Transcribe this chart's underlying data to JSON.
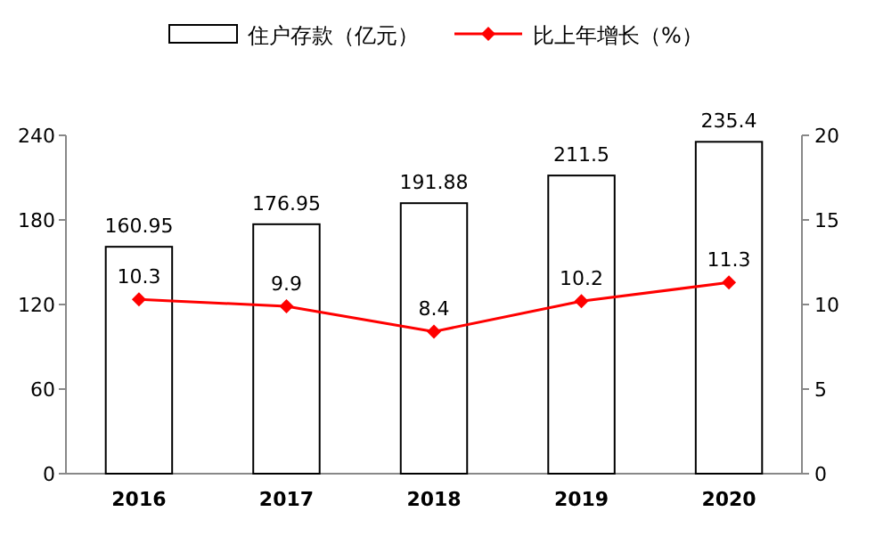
{
  "chart_data": {
    "type": "bar",
    "categories": [
      "2016",
      "2017",
      "2018",
      "2019",
      "2020"
    ],
    "series": [
      {
        "name": "住户存款（亿元）",
        "color": "#ffffff",
        "values": [
          160.95,
          176.95,
          191.88,
          211.5,
          235.4
        ]
      },
      {
        "name": "比上年增长（%）",
        "type": "line",
        "axis": "y2",
        "color": "#ff0000",
        "marker": "diamond",
        "values": [
          10.3,
          9.9,
          8.4,
          10.2,
          11.3
        ]
      }
    ],
    "ylim": [
      0,
      240
    ],
    "yticks": [
      0,
      60,
      120,
      180,
      240
    ],
    "y2lim": [
      0,
      20
    ],
    "y2ticks": [
      0,
      5,
      10,
      15,
      20
    ],
    "data_labels": true,
    "legend": "top",
    "grid": false
  }
}
